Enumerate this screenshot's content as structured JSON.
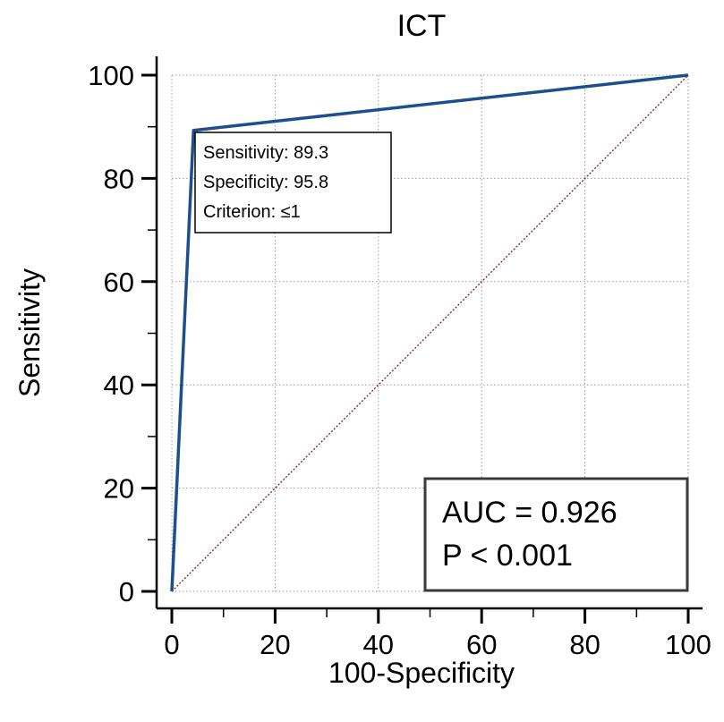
{
  "chart_data": {
    "type": "line",
    "title": "ICT",
    "xlabel": "100-Specificity",
    "ylabel": "Sensitivity",
    "xlim": [
      0,
      100
    ],
    "ylim": [
      0,
      100
    ],
    "xticks": [
      0,
      20,
      40,
      60,
      80,
      100
    ],
    "yticks": [
      0,
      20,
      40,
      60,
      80,
      100
    ],
    "grid": true,
    "series": [
      {
        "color": "#1f4e8c",
        "x": [
          0,
          4.2,
          100
        ],
        "y": [
          0,
          89.3,
          100
        ]
      },
      {
        "color": "#8b1a1a",
        "style": "dotted",
        "x": [
          0,
          100
        ],
        "y": [
          0,
          100
        ]
      }
    ],
    "annotations": {
      "optimal_point": {
        "x": 4.2,
        "y": 89.3,
        "lines": [
          "Sensitivity: 89.3",
          "Specificity: 95.8",
          "Criterion: ≤1"
        ]
      },
      "stats": {
        "lines": [
          "AUC = 0.926",
          "P < 0.001"
        ]
      }
    }
  }
}
